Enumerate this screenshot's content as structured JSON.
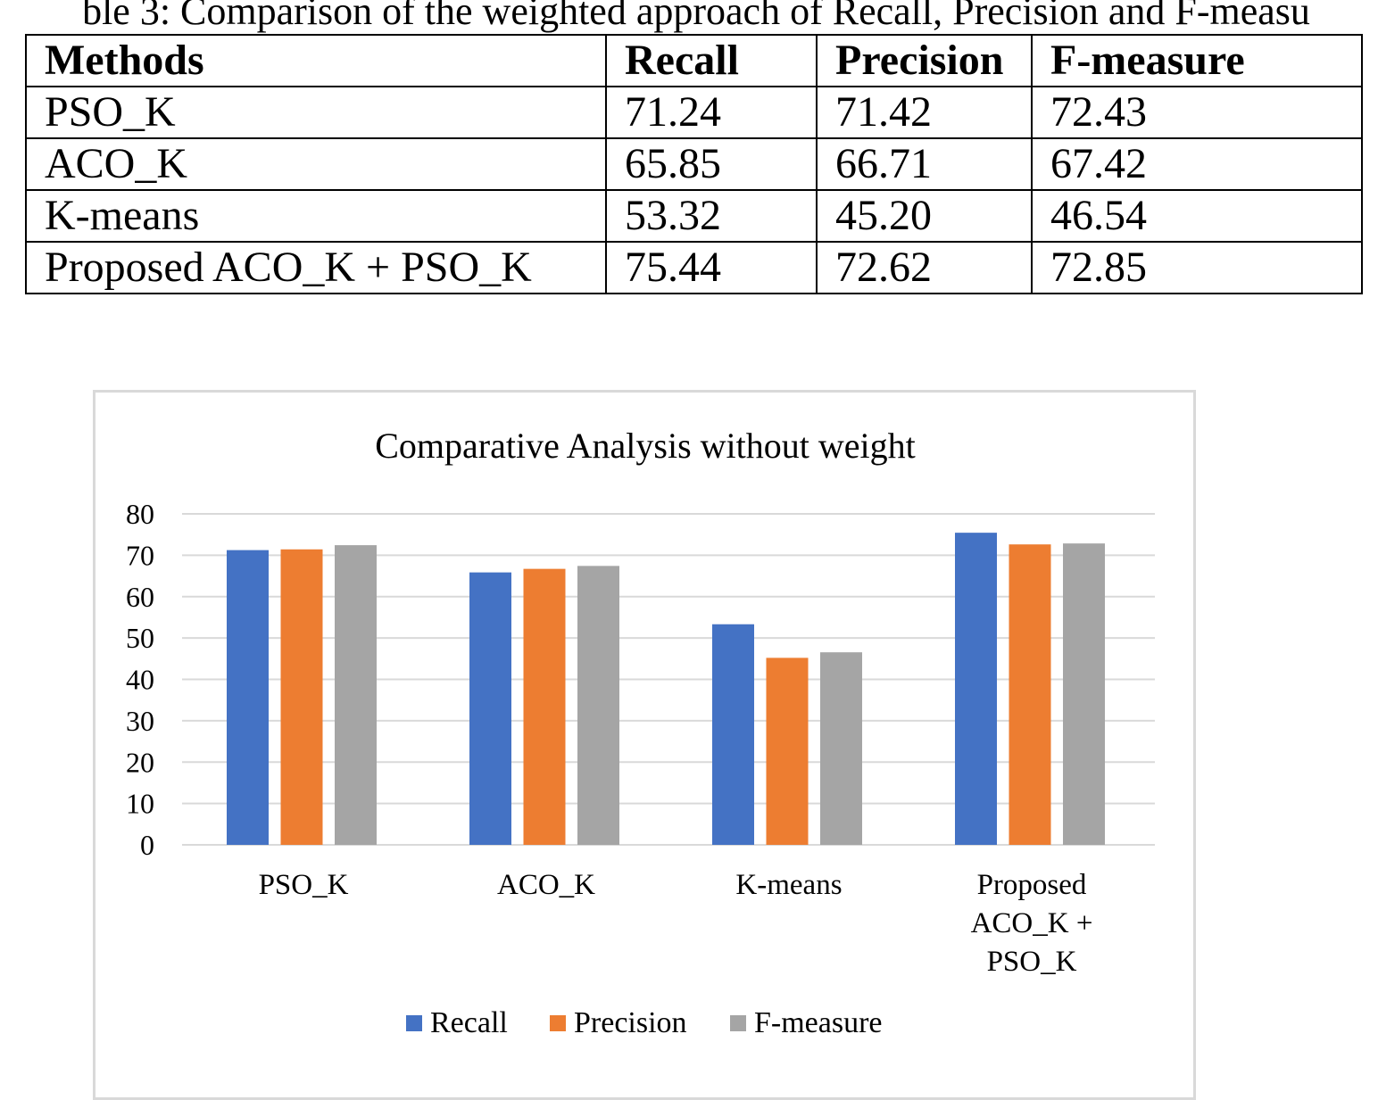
{
  "table": {
    "caption": "ble 3: Comparison of the weighted approach of Recall, Precision and F-measu",
    "headers": [
      "Methods",
      "Recall",
      "Precision",
      "F-measure"
    ],
    "rows": [
      [
        "PSO_K",
        "71.24",
        "71.42",
        "72.43"
      ],
      [
        "ACO_K",
        "65.85",
        "66.71",
        "67.42"
      ],
      [
        "K-means",
        "53.32",
        "45.20",
        "46.54"
      ],
      [
        "Proposed ACO_K + PSO_K",
        "75.44",
        "72.62",
        "72.85"
      ]
    ]
  },
  "chart_data": {
    "type": "bar",
    "title": "Comparative Analysis without weight",
    "xlabel": "",
    "ylabel": "",
    "categories": [
      "PSO_K",
      "ACO_K",
      "K-means",
      "Proposed ACO_K + PSO_K"
    ],
    "category_label_lines": [
      [
        "PSO_K"
      ],
      [
        "ACO_K"
      ],
      [
        "K-means"
      ],
      [
        "Proposed",
        "ACO_K +",
        "PSO_K"
      ]
    ],
    "series": [
      {
        "name": "Recall",
        "color": "#4472c4",
        "values": [
          71.24,
          65.85,
          53.32,
          75.44
        ]
      },
      {
        "name": "Precision",
        "color": "#ed7d31",
        "values": [
          71.42,
          66.71,
          45.2,
          72.62
        ]
      },
      {
        "name": "F-measure",
        "color": "#a5a5a5",
        "values": [
          72.43,
          67.42,
          46.54,
          72.85
        ]
      }
    ],
    "ylim": [
      0,
      80
    ],
    "yticks": [
      0,
      10,
      20,
      30,
      40,
      50,
      60,
      70,
      80
    ],
    "grid": true,
    "legend": "bottom"
  }
}
